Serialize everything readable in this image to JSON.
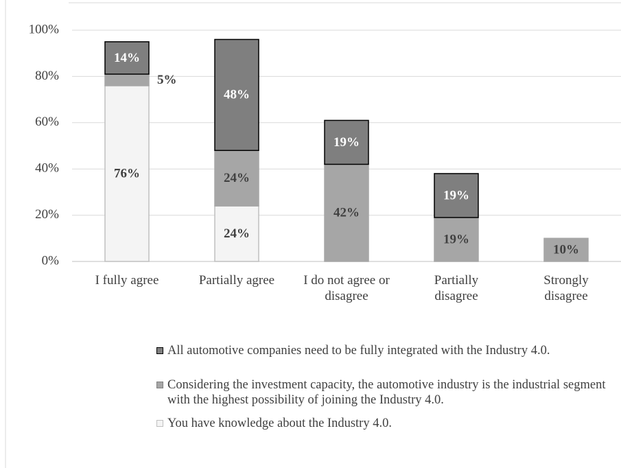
{
  "chart_data": {
    "type": "stacked-bar",
    "categories": [
      "I fully agree",
      "Partially agree",
      "I do not agree or\ndisagree",
      "Partially\ndisagree",
      "Strongly\ndisagree"
    ],
    "series": [
      {
        "name": "All automotive companies need to be fully integrated with the Industry 4.0.",
        "color": "#7f7f7f",
        "stroke": "#000000",
        "label_color": "#ffffff",
        "values": [
          14,
          48,
          19,
          19,
          null
        ],
        "value_labels": [
          "14%",
          "48%",
          "19%",
          "19%",
          null
        ]
      },
      {
        "name": "Considering the investment capacity, the automotive industry is the industrial segment with the highest possibility of joining the Industry 4.0.",
        "color": "#a6a6a6",
        "stroke": "#a6a6a6",
        "label_color": "#404040",
        "values": [
          5,
          24,
          42,
          19,
          10
        ],
        "value_labels": [
          "5%",
          "24%",
          "42%",
          "19%",
          "10%"
        ]
      },
      {
        "name": "You have knowledge about the Industry 4.0.",
        "color": "#f4f4f4",
        "stroke": "#bfbfbf",
        "label_color": "#404040",
        "values": [
          76,
          24,
          null,
          null,
          null
        ],
        "value_labels": [
          "76%",
          "24%",
          null,
          null,
          null
        ]
      }
    ],
    "ylim": [
      0,
      100
    ],
    "yticks": [
      {
        "value": 0,
        "label": "0%"
      },
      {
        "value": 20,
        "label": "20%"
      },
      {
        "value": 40,
        "label": "40%"
      },
      {
        "value": 60,
        "label": "60%"
      },
      {
        "value": 80,
        "label": "80%"
      },
      {
        "value": 100,
        "label": "100%"
      }
    ],
    "grid": true
  }
}
